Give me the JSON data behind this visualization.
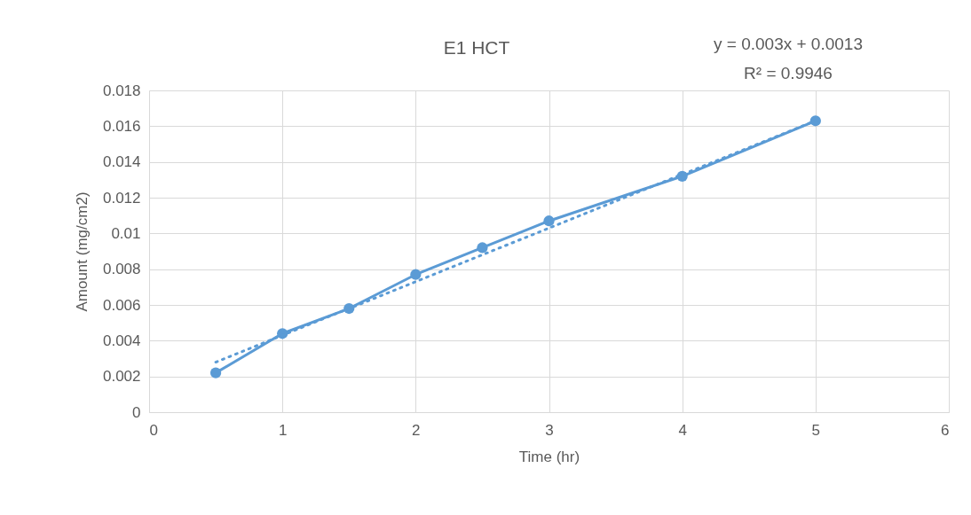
{
  "chart_data": {
    "type": "line",
    "title": "E1 HCT",
    "xlabel": "Time (hr)",
    "ylabel": "Amount (mg/cm2)",
    "annotations": [
      "y = 0.003x + 0.0013",
      "R² = 0.9946"
    ],
    "x": [
      0.5,
      1,
      1.5,
      2,
      2.5,
      3,
      4,
      5
    ],
    "series": [
      {
        "color": "#5b9bd5",
        "values": [
          0.0022,
          0.0044,
          0.0058,
          0.0077,
          0.0092,
          0.0107,
          0.0132,
          0.0163
        ],
        "marker": "circle",
        "line_style": "solid"
      },
      {
        "type": "line",
        "color": "#5b9bd5",
        "x": [
          0.5,
          5
        ],
        "values": [
          0.0028,
          0.0163
        ],
        "marker": "none",
        "line_style": "dotted"
      }
    ],
    "xlim": [
      0,
      6
    ],
    "xticks": [
      0,
      1,
      2,
      3,
      4,
      5,
      6
    ],
    "ylim": [
      0,
      0.018
    ],
    "yticks": [
      0,
      0.002,
      0.004,
      0.006,
      0.008,
      0.01,
      0.012,
      0.014,
      0.016,
      0.018
    ],
    "grid": true
  }
}
